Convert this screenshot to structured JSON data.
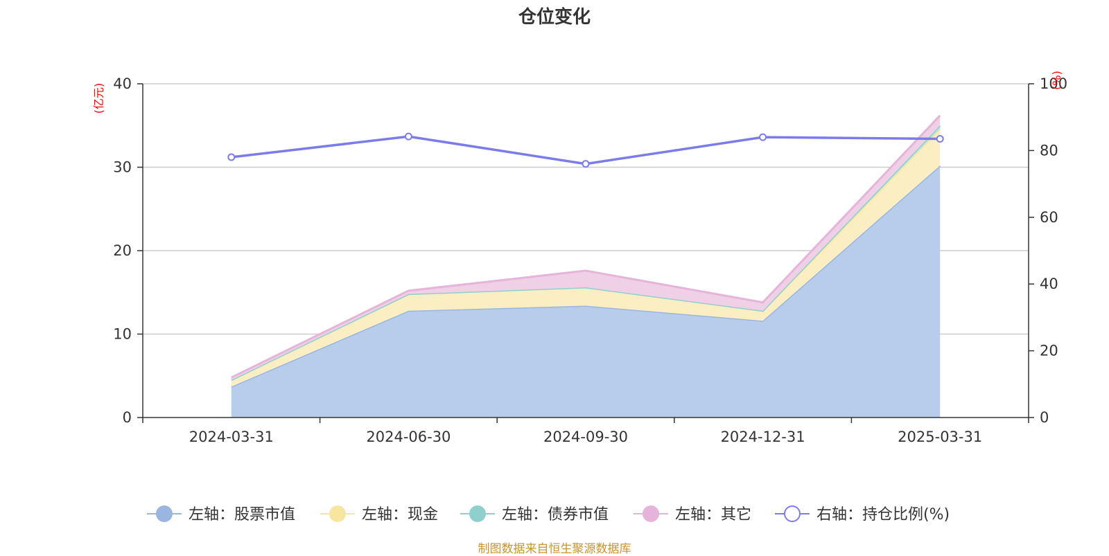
{
  "chart_data": {
    "type": "area",
    "title": "仓位变化",
    "categories": [
      "2024-03-31",
      "2024-06-30",
      "2024-09-30",
      "2024-12-31",
      "2025-03-31"
    ],
    "y_left": {
      "unit_label": "(亿元)",
      "min": 0,
      "max": 40,
      "ticks": [
        0,
        10,
        20,
        30,
        40
      ]
    },
    "y_right": {
      "unit_label": "(%)",
      "min": 0,
      "max": 100,
      "ticks": [
        0,
        20,
        40,
        60,
        80,
        100
      ]
    },
    "stacked": true,
    "grid": true,
    "legend_position": "bottom",
    "series": [
      {
        "name": "左轴：股票市值",
        "axis": "left",
        "kind": "area",
        "color": "#9ab6e0",
        "fill": "#b8cdeb",
        "values": [
          3.7,
          12.8,
          13.4,
          11.6,
          30.2
        ]
      },
      {
        "name": "左轴：现金",
        "axis": "left",
        "kind": "area",
        "color": "#f8e6a0",
        "fill": "#faeec2",
        "values": [
          0.8,
          2.0,
          2.2,
          1.2,
          4.4
        ]
      },
      {
        "name": "左轴：债券市值",
        "axis": "left",
        "kind": "area",
        "color": "#8fd0cf",
        "fill": "#b9e3e1",
        "values": [
          0.0,
          0.0,
          0.0,
          0.0,
          0.4
        ]
      },
      {
        "name": "左轴：其它",
        "axis": "left",
        "kind": "area",
        "color": "#e6b4da",
        "fill": "#f0d0e6",
        "values": [
          0.3,
          0.4,
          2.0,
          1.0,
          1.2
        ]
      },
      {
        "name": "右轴：持仓比例(%)",
        "axis": "right",
        "kind": "line",
        "color": "#7b7bec",
        "values": [
          78.0,
          84.2,
          76.0,
          84.0,
          83.5
        ]
      }
    ]
  },
  "footer": {
    "source": "制图数据来自恒生聚源数据库"
  }
}
